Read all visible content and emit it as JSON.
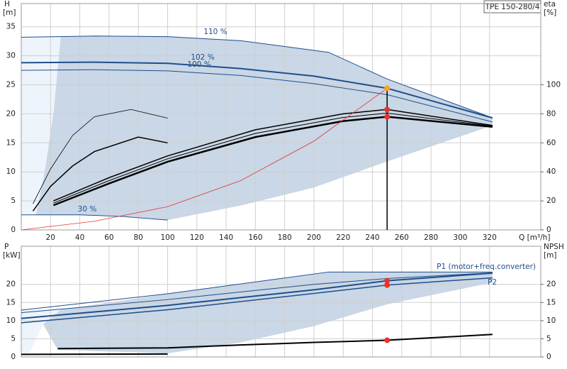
{
  "title": "TPE 150-280/4",
  "chart_data": [
    {
      "type": "line",
      "ylabel": "H",
      "yunit": "[m]",
      "y2label": "eta",
      "y2unit": "[%]",
      "xlabel": "Q [m³/h]",
      "xlim": [
        0,
        355
      ],
      "xticks": [
        20,
        40,
        60,
        80,
        100,
        120,
        140,
        160,
        180,
        200,
        220,
        240,
        260,
        280,
        300,
        320
      ],
      "ylim": [
        0,
        39
      ],
      "yticks": [
        0,
        5,
        10,
        15,
        20,
        25,
        30,
        35
      ],
      "y2lim": [
        0,
        156
      ],
      "y2ticks": [
        0,
        20,
        40,
        60,
        80,
        100
      ],
      "grid": true,
      "areas": [
        {
          "color": "#eef4fb",
          "x": [
            0,
            27,
            22,
            16,
            10,
            0
          ],
          "values": [
            33.2,
            33.3,
            20,
            10,
            2.6,
            2.6
          ]
        },
        {
          "color": "#c9d7e6",
          "x": [
            27,
            50,
            100,
            150,
            210,
            250,
            322,
            322,
            250,
            200,
            150,
            100,
            70,
            40,
            10,
            16,
            22
          ],
          "values": [
            33.3,
            33.4,
            33.3,
            32.6,
            30.6,
            26,
            19.3,
            18,
            11.8,
            7.3,
            4.2,
            1.7,
            2.3,
            2.6,
            2.6,
            10,
            20
          ]
        }
      ],
      "series": [
        {
          "name": "110 %",
          "color": "#1f4e8c",
          "width": 1,
          "x": [
            0,
            25,
            50,
            100,
            150,
            210,
            250,
            322
          ],
          "values": [
            33.2,
            33.3,
            33.4,
            33.3,
            32.6,
            30.6,
            26,
            19.3
          ]
        },
        {
          "name": "102 %",
          "color": "#1f4e8c",
          "width": 2,
          "x": [
            0,
            50,
            100,
            150,
            200,
            250,
            322
          ],
          "values": [
            28.8,
            28.9,
            28.7,
            27.8,
            26.5,
            24.4,
            19.3
          ]
        },
        {
          "name": "100 %",
          "color": "#1f4e8c",
          "width": 1,
          "x": [
            0,
            50,
            100,
            150,
            200,
            250,
            322
          ],
          "values": [
            27.5,
            27.6,
            27.4,
            26.6,
            25.2,
            23.3,
            18.6
          ]
        },
        {
          "name": "30 %",
          "color": "#1f4e8c",
          "width": 1,
          "x": [
            0,
            40,
            70,
            100
          ],
          "values": [
            2.6,
            2.6,
            2.3,
            1.7
          ]
        },
        {
          "color": "#000000",
          "width": 1.5,
          "axis": "y2",
          "x": [
            22,
            60,
            100,
            160,
            220,
            250,
            322
          ],
          "values": [
            20,
            36,
            51,
            69,
            80,
            83,
            72
          ]
        },
        {
          "color": "#000000",
          "width": 1,
          "axis": "y2",
          "x": [
            22,
            60,
            100,
            160,
            220,
            250,
            322
          ],
          "values": [
            18.5,
            34,
            49,
            66.5,
            77.5,
            80.5,
            71.5
          ]
        },
        {
          "color": "#000000",
          "width": 2.5,
          "axis": "y2",
          "x": [
            22,
            60,
            100,
            160,
            220,
            250,
            322
          ],
          "values": [
            17,
            32,
            47,
            64,
            75,
            78,
            71
          ]
        },
        {
          "color": "#000000",
          "width": 0.8,
          "axis": "y2",
          "x": [
            8,
            20,
            35,
            50,
            75,
            100
          ],
          "values": [
            18,
            42,
            65,
            78,
            83,
            77
          ]
        },
        {
          "color": "#000000",
          "width": 1.5,
          "axis": "y2",
          "x": [
            8,
            20,
            35,
            50,
            80,
            100
          ],
          "values": [
            13,
            30,
            44,
            54,
            64,
            60
          ]
        },
        {
          "color": "#e8322c",
          "width": 0.8,
          "x": [
            0,
            50,
            100,
            150,
            200,
            250
          ],
          "values": [
            0,
            1.5,
            4,
            8.5,
            15.3,
            24.4
          ]
        }
      ],
      "points": [
        {
          "x": 250,
          "y": 24.4,
          "color": "#f5a623"
        },
        {
          "x": 250,
          "y": 83,
          "color": "#e8322c",
          "axis": "y2"
        },
        {
          "x": 250,
          "y": 78,
          "color": "#e8322c",
          "axis": "y2"
        }
      ]
    },
    {
      "type": "line",
      "ylabel": "P",
      "yunit": "[kW]",
      "y2label": "NPSH",
      "y2unit": "[m]",
      "sharex": true,
      "ylim": [
        0,
        30.5
      ],
      "yticks": [
        0,
        5,
        10,
        15,
        20
      ],
      "y2lim": [
        0,
        30.5
      ],
      "y2ticks": [
        0,
        5,
        10,
        15,
        20
      ],
      "grid": true,
      "areas": [
        {
          "color": "#eef4fb",
          "x": [
            0,
            27,
            15,
            5,
            0
          ],
          "values": [
            12.9,
            13,
            9,
            0.5,
            0.5
          ]
        },
        {
          "color": "#c9d7e6",
          "x": [
            27,
            100,
            210,
            322,
            322,
            250,
            200,
            150,
            100,
            25,
            15
          ],
          "values": [
            13,
            17.4,
            23.4,
            23.4,
            20.5,
            14.5,
            8.5,
            4,
            1,
            1.9,
            9
          ]
        }
      ],
      "series": [
        {
          "color": "#1f4e8c",
          "width": 1,
          "x": [
            0,
            100,
            210,
            322
          ],
          "values": [
            12.9,
            17.4,
            23.4,
            23.4
          ]
        },
        {
          "color": "#1f4e8c",
          "width": 1,
          "x": [
            0,
            100,
            200,
            250,
            322
          ],
          "values": [
            12.2,
            15.8,
            20,
            21.6,
            23.2
          ]
        },
        {
          "name": "P1 (motor+freq.converter)",
          "color": "#1f4e8c",
          "width": 2,
          "x": [
            0,
            100,
            200,
            250,
            322
          ],
          "values": [
            10.6,
            14.2,
            18.5,
            21,
            23.1
          ]
        },
        {
          "name": "P2",
          "color": "#1f4e8c",
          "width": 1.5,
          "x": [
            0,
            100,
            200,
            250,
            322
          ],
          "values": [
            9.4,
            13,
            17.5,
            19.8,
            21.8
          ]
        },
        {
          "color": "#000000",
          "width": 2,
          "axis": "y2",
          "x": [
            25,
            100,
            150,
            200,
            250,
            322
          ],
          "values": [
            2.3,
            2.5,
            3.3,
            4,
            4.6,
            6.2
          ]
        },
        {
          "color": "#000000",
          "width": 2,
          "x": [
            0,
            100
          ],
          "values": [
            0.7,
            0.8
          ]
        }
      ],
      "points": [
        {
          "x": 250,
          "y": 21,
          "color": "#e8322c"
        },
        {
          "x": 250,
          "y": 19.8,
          "color": "#e8322c"
        },
        {
          "x": 250,
          "y": 4.6,
          "color": "#e8322c",
          "axis": "y2"
        }
      ]
    }
  ]
}
